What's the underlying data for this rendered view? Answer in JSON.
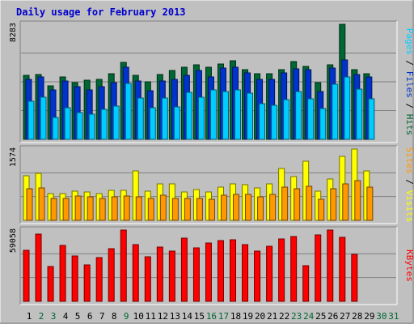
{
  "chart_data": {
    "type": "bar",
    "title": "Daily usage for February 2013",
    "days": [
      "1",
      "2",
      "3",
      "4",
      "5",
      "6",
      "7",
      "8",
      "9",
      "10",
      "11",
      "12",
      "13",
      "14",
      "15",
      "16",
      "17",
      "18",
      "19",
      "20",
      "21",
      "22",
      "23",
      "24",
      "25",
      "26",
      "27",
      "28",
      "29",
      "30",
      "31"
    ],
    "weekend_days": [
      "2",
      "3",
      "9",
      "16",
      "17",
      "23",
      "24",
      "30",
      "31"
    ],
    "panels": [
      {
        "id": "hits-files-pages",
        "max_label": "8283",
        "ymax": 8283,
        "legend": [
          "Pages",
          "Files",
          "Hits"
        ],
        "series": [
          {
            "name": "Hits",
            "color": "#006633",
            "values": [
              4580,
              4660,
              3840,
              4470,
              4090,
              4250,
              4300,
              4710,
              5540,
              4630,
              4130,
              4690,
              4930,
              5170,
              5390,
              5190,
              5450,
              5630,
              5030,
              4750,
              4750,
              5030,
              5590,
              5270,
              4110,
              5350,
              8280,
              5030,
              4740
            ]
          },
          {
            "name": "Files",
            "color": "#0033cc",
            "values": [
              4300,
              4470,
              3560,
              4190,
              3800,
              3580,
              3790,
              4100,
              5170,
              4200,
              3520,
              4180,
              4300,
              4610,
              4950,
              4520,
              5110,
              5170,
              4790,
              4290,
              4320,
              4810,
              5070,
              5020,
              3460,
              5130,
              5690,
              4650,
              4480
            ]
          },
          {
            "name": "Pages",
            "color": "#00ccff",
            "values": [
              2770,
              3060,
              1590,
              2300,
              1940,
              1790,
              2130,
              2420,
              4030,
              2950,
              2270,
              2990,
              2360,
              3410,
              3010,
              3550,
              3420,
              3550,
              3300,
              2560,
              2470,
              2840,
              3450,
              2920,
              2190,
              3980,
              4470,
              3600,
              2940
            ]
          }
        ]
      },
      {
        "id": "visits-sites",
        "max_label": "1574",
        "ymax": 1574,
        "legend": [
          "Sites",
          "Visits"
        ],
        "series": [
          {
            "name": "Visits",
            "color": "#ffff00",
            "values": [
              985,
              1039,
              596,
              592,
              646,
              619,
              592,
              662,
              662,
              1093,
              640,
              813,
              802,
              629,
              673,
              629,
              738,
              813,
              781,
              722,
              813,
              1136,
              958,
              1314,
              640,
              914,
              1418,
              1574,
              1093
            ]
          },
          {
            "name": "Sites",
            "color": "#ff9900",
            "values": [
              695,
              722,
              491,
              475,
              540,
              518,
              491,
              518,
              534,
              512,
              491,
              555,
              491,
              486,
              491,
              459,
              550,
              577,
              566,
              523,
              572,
              728,
              706,
              744,
              459,
              706,
              808,
              868,
              732
            ]
          }
        ]
      },
      {
        "id": "kbytes",
        "max_label": "59058",
        "ymax": 59058,
        "legend": [
          "KBytes"
        ],
        "series": [
          {
            "name": "KBytes",
            "color": "#ff0000",
            "values": [
              42260,
              55900,
              28590,
              46060,
              37510,
              30220,
              36270,
              43370,
              59000,
              46790,
              36600,
              44690,
              41670,
              52460,
              44010,
              48160,
              50370,
              51340,
              47080,
              41860,
              45660,
              51630,
              53930,
              29200,
              55170,
              59058,
              53300,
              38910
            ]
          }
        ]
      }
    ]
  }
}
